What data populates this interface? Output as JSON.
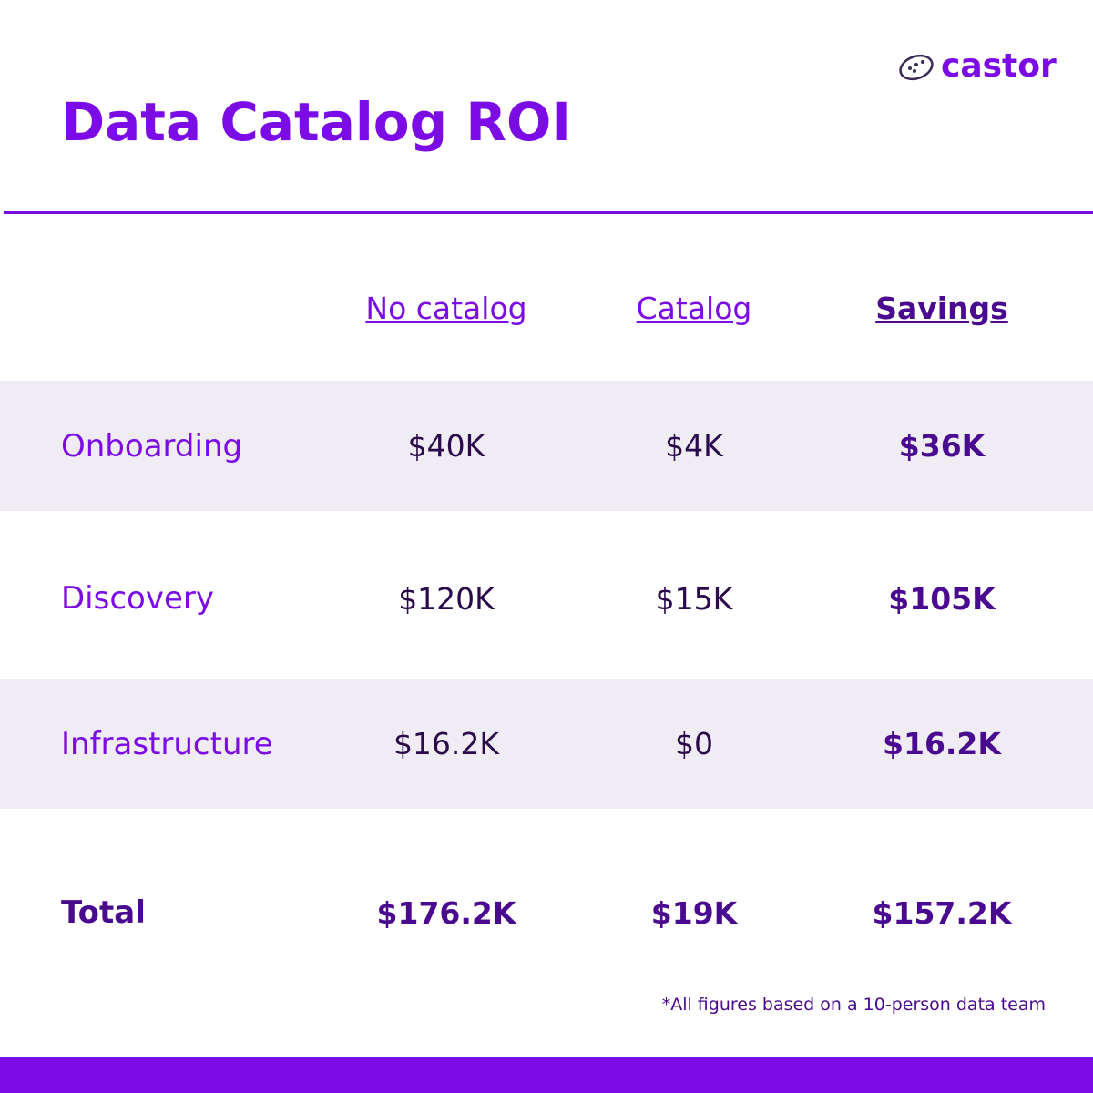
{
  "header": {
    "title": "Data Catalog ROI",
    "logo": "castor"
  },
  "table": {
    "columns": [
      "No catalog",
      "Catalog",
      "Savings"
    ],
    "rows": [
      [
        "Onboarding",
        "$40K",
        "$4K",
        "$36K"
      ],
      [
        "Discovery",
        "$120K",
        "$15K",
        "$105K"
      ],
      [
        "Infrastructure",
        "$16.2K",
        "$0",
        "$16.2K"
      ],
      [
        "Total",
        "$176.2K",
        "$19K",
        "$157.2K"
      ]
    ]
  },
  "footnote": "*All figures based on a 10-person data team"
}
